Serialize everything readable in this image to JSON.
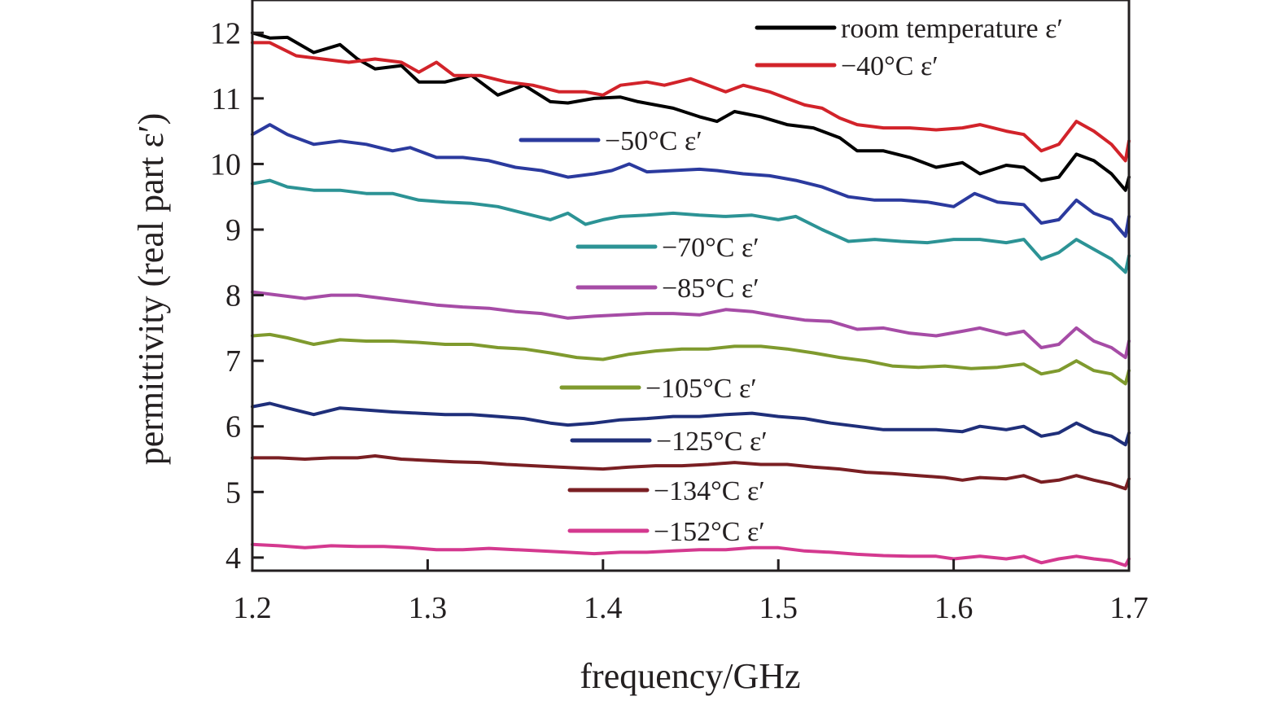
{
  "chart_data": {
    "type": "line",
    "title": "",
    "xlabel": "frequency/GHz",
    "ylabel": "permittivity (real part ε′)",
    "xlim": [
      1.2,
      1.7
    ],
    "ylim": [
      3.8,
      12.5
    ],
    "xticks": [
      "1.2",
      "1.3",
      "1.4",
      "1.5",
      "1.6",
      "1.7"
    ],
    "xtick_values": [
      1.2,
      1.3,
      1.4,
      1.5,
      1.6,
      1.7
    ],
    "yticks": [
      "4",
      "5",
      "6",
      "7",
      "8",
      "9",
      "10",
      "11",
      "12"
    ],
    "ytick_values": [
      4,
      5,
      6,
      7,
      8,
      9,
      10,
      11,
      12
    ],
    "grid": false,
    "legend_placement": "inline",
    "series": [
      {
        "name": "room temperature ε′",
        "color": "#000000",
        "x": [
          1.2,
          1.21,
          1.22,
          1.235,
          1.25,
          1.26,
          1.27,
          1.285,
          1.295,
          1.31,
          1.325,
          1.34,
          1.355,
          1.37,
          1.38,
          1.395,
          1.41,
          1.42,
          1.44,
          1.455,
          1.465,
          1.475,
          1.49,
          1.505,
          1.52,
          1.535,
          1.545,
          1.56,
          1.575,
          1.59,
          1.605,
          1.615,
          1.63,
          1.64,
          1.65,
          1.66,
          1.67,
          1.68,
          1.69,
          1.698,
          1.7
        ],
        "y": [
          12.0,
          11.92,
          11.93,
          11.7,
          11.82,
          11.6,
          11.45,
          11.5,
          11.25,
          11.25,
          11.35,
          11.05,
          11.2,
          10.95,
          10.93,
          11.0,
          11.02,
          10.95,
          10.85,
          10.72,
          10.65,
          10.8,
          10.72,
          10.6,
          10.55,
          10.4,
          10.2,
          10.2,
          10.1,
          9.95,
          10.02,
          9.85,
          9.98,
          9.95,
          9.75,
          9.8,
          10.15,
          10.05,
          9.85,
          9.6,
          9.8
        ]
      },
      {
        "name": "−40°C ε′",
        "color": "#d2232a",
        "x": [
          1.2,
          1.21,
          1.225,
          1.24,
          1.255,
          1.27,
          1.285,
          1.295,
          1.305,
          1.315,
          1.33,
          1.345,
          1.36,
          1.375,
          1.39,
          1.4,
          1.41,
          1.425,
          1.435,
          1.45,
          1.46,
          1.47,
          1.48,
          1.495,
          1.505,
          1.515,
          1.525,
          1.535,
          1.545,
          1.56,
          1.575,
          1.59,
          1.605,
          1.615,
          1.63,
          1.64,
          1.65,
          1.66,
          1.67,
          1.68,
          1.69,
          1.698,
          1.7
        ],
        "y": [
          11.85,
          11.85,
          11.65,
          11.6,
          11.55,
          11.6,
          11.55,
          11.4,
          11.55,
          11.35,
          11.35,
          11.25,
          11.2,
          11.1,
          11.1,
          11.05,
          11.2,
          11.25,
          11.2,
          11.3,
          11.2,
          11.1,
          11.2,
          11.1,
          11.0,
          10.9,
          10.85,
          10.7,
          10.6,
          10.55,
          10.55,
          10.52,
          10.55,
          10.6,
          10.5,
          10.45,
          10.2,
          10.3,
          10.65,
          10.5,
          10.3,
          10.05,
          10.35
        ]
      },
      {
        "name": "−50°C ε′",
        "color": "#2b3a9e",
        "x": [
          1.2,
          1.21,
          1.22,
          1.235,
          1.25,
          1.265,
          1.28,
          1.29,
          1.305,
          1.32,
          1.335,
          1.35,
          1.365,
          1.38,
          1.395,
          1.405,
          1.415,
          1.425,
          1.44,
          1.455,
          1.465,
          1.48,
          1.495,
          1.51,
          1.525,
          1.54,
          1.555,
          1.57,
          1.585,
          1.6,
          1.612,
          1.625,
          1.64,
          1.65,
          1.66,
          1.67,
          1.68,
          1.69,
          1.698,
          1.7
        ],
        "y": [
          10.45,
          10.6,
          10.45,
          10.3,
          10.35,
          10.3,
          10.2,
          10.25,
          10.1,
          10.1,
          10.05,
          9.95,
          9.9,
          9.8,
          9.85,
          9.9,
          10.0,
          9.88,
          9.9,
          9.92,
          9.9,
          9.85,
          9.82,
          9.75,
          9.65,
          9.5,
          9.45,
          9.45,
          9.42,
          9.35,
          9.55,
          9.42,
          9.38,
          9.1,
          9.15,
          9.45,
          9.25,
          9.15,
          8.9,
          9.2
        ]
      },
      {
        "name": "−70°C ε′",
        "color": "#2c9395",
        "x": [
          1.2,
          1.21,
          1.22,
          1.235,
          1.25,
          1.265,
          1.28,
          1.295,
          1.31,
          1.325,
          1.34,
          1.355,
          1.37,
          1.38,
          1.39,
          1.4,
          1.41,
          1.425,
          1.44,
          1.455,
          1.47,
          1.485,
          1.5,
          1.51,
          1.525,
          1.54,
          1.555,
          1.57,
          1.585,
          1.6,
          1.615,
          1.63,
          1.64,
          1.65,
          1.66,
          1.67,
          1.68,
          1.69,
          1.698,
          1.7
        ],
        "y": [
          9.7,
          9.75,
          9.65,
          9.6,
          9.6,
          9.55,
          9.55,
          9.45,
          9.42,
          9.4,
          9.35,
          9.25,
          9.15,
          9.25,
          9.08,
          9.15,
          9.2,
          9.22,
          9.25,
          9.22,
          9.2,
          9.22,
          9.15,
          9.2,
          9.0,
          8.82,
          8.85,
          8.82,
          8.8,
          8.85,
          8.85,
          8.8,
          8.85,
          8.55,
          8.65,
          8.85,
          8.7,
          8.55,
          8.35,
          8.6
        ]
      },
      {
        "name": "−85°C ε′",
        "color": "#a64ca6",
        "x": [
          1.2,
          1.215,
          1.23,
          1.245,
          1.26,
          1.275,
          1.29,
          1.305,
          1.32,
          1.335,
          1.35,
          1.365,
          1.38,
          1.395,
          1.41,
          1.425,
          1.44,
          1.455,
          1.47,
          1.485,
          1.5,
          1.515,
          1.53,
          1.545,
          1.56,
          1.575,
          1.59,
          1.605,
          1.615,
          1.63,
          1.64,
          1.65,
          1.66,
          1.67,
          1.68,
          1.69,
          1.698,
          1.7
        ],
        "y": [
          8.05,
          8.0,
          7.95,
          8.0,
          8.0,
          7.95,
          7.9,
          7.85,
          7.82,
          7.8,
          7.75,
          7.72,
          7.65,
          7.68,
          7.7,
          7.72,
          7.72,
          7.7,
          7.78,
          7.75,
          7.68,
          7.62,
          7.6,
          7.48,
          7.5,
          7.42,
          7.38,
          7.45,
          7.5,
          7.4,
          7.45,
          7.2,
          7.25,
          7.5,
          7.3,
          7.2,
          7.05,
          7.3
        ]
      },
      {
        "name": "−105°C ε′",
        "color": "#7f9a2e",
        "x": [
          1.2,
          1.21,
          1.22,
          1.235,
          1.25,
          1.265,
          1.28,
          1.295,
          1.31,
          1.325,
          1.34,
          1.355,
          1.37,
          1.385,
          1.4,
          1.415,
          1.43,
          1.445,
          1.46,
          1.475,
          1.49,
          1.505,
          1.52,
          1.535,
          1.55,
          1.565,
          1.58,
          1.595,
          1.61,
          1.625,
          1.64,
          1.65,
          1.66,
          1.67,
          1.68,
          1.69,
          1.698,
          1.7
        ],
        "y": [
          7.38,
          7.4,
          7.35,
          7.25,
          7.32,
          7.3,
          7.3,
          7.28,
          7.25,
          7.25,
          7.2,
          7.18,
          7.12,
          7.05,
          7.02,
          7.1,
          7.15,
          7.18,
          7.18,
          7.22,
          7.22,
          7.18,
          7.12,
          7.05,
          7.0,
          6.92,
          6.9,
          6.92,
          6.88,
          6.9,
          6.95,
          6.8,
          6.85,
          7.0,
          6.85,
          6.8,
          6.65,
          6.85
        ]
      },
      {
        "name": "−125°C ε′",
        "color": "#1f2f7a",
        "x": [
          1.2,
          1.21,
          1.22,
          1.235,
          1.25,
          1.265,
          1.28,
          1.295,
          1.31,
          1.325,
          1.34,
          1.355,
          1.37,
          1.38,
          1.395,
          1.41,
          1.425,
          1.44,
          1.455,
          1.47,
          1.485,
          1.5,
          1.515,
          1.53,
          1.545,
          1.56,
          1.575,
          1.59,
          1.605,
          1.615,
          1.63,
          1.64,
          1.65,
          1.66,
          1.67,
          1.68,
          1.69,
          1.698,
          1.7
        ],
        "y": [
          6.3,
          6.35,
          6.28,
          6.18,
          6.28,
          6.25,
          6.22,
          6.2,
          6.18,
          6.18,
          6.15,
          6.12,
          6.05,
          6.02,
          6.05,
          6.1,
          6.12,
          6.15,
          6.15,
          6.18,
          6.2,
          6.15,
          6.12,
          6.05,
          6.0,
          5.95,
          5.95,
          5.95,
          5.92,
          6.0,
          5.95,
          6.0,
          5.85,
          5.9,
          6.05,
          5.92,
          5.85,
          5.72,
          5.9
        ]
      },
      {
        "name": "−134°C ε′",
        "color": "#7a1f23",
        "x": [
          1.2,
          1.215,
          1.23,
          1.245,
          1.26,
          1.27,
          1.285,
          1.3,
          1.315,
          1.33,
          1.345,
          1.36,
          1.375,
          1.39,
          1.4,
          1.415,
          1.43,
          1.445,
          1.46,
          1.475,
          1.49,
          1.505,
          1.52,
          1.535,
          1.55,
          1.565,
          1.58,
          1.595,
          1.605,
          1.615,
          1.63,
          1.64,
          1.65,
          1.66,
          1.67,
          1.68,
          1.69,
          1.698,
          1.7
        ],
        "y": [
          5.52,
          5.52,
          5.5,
          5.52,
          5.52,
          5.55,
          5.5,
          5.48,
          5.46,
          5.45,
          5.42,
          5.4,
          5.38,
          5.36,
          5.35,
          5.38,
          5.4,
          5.4,
          5.42,
          5.45,
          5.42,
          5.42,
          5.38,
          5.35,
          5.3,
          5.28,
          5.25,
          5.22,
          5.18,
          5.22,
          5.2,
          5.25,
          5.15,
          5.18,
          5.25,
          5.18,
          5.12,
          5.05,
          5.2
        ]
      },
      {
        "name": "−152°C ε′",
        "color": "#d4398f",
        "x": [
          1.2,
          1.215,
          1.23,
          1.245,
          1.26,
          1.275,
          1.29,
          1.305,
          1.32,
          1.335,
          1.35,
          1.365,
          1.38,
          1.395,
          1.41,
          1.425,
          1.44,
          1.455,
          1.47,
          1.485,
          1.5,
          1.515,
          1.53,
          1.545,
          1.56,
          1.575,
          1.59,
          1.6,
          1.615,
          1.63,
          1.64,
          1.65,
          1.66,
          1.67,
          1.68,
          1.69,
          1.698,
          1.7
        ],
        "y": [
          4.2,
          4.18,
          4.15,
          4.18,
          4.17,
          4.17,
          4.15,
          4.12,
          4.12,
          4.14,
          4.12,
          4.1,
          4.08,
          4.06,
          4.08,
          4.08,
          4.1,
          4.12,
          4.12,
          4.15,
          4.15,
          4.1,
          4.08,
          4.05,
          4.03,
          4.02,
          4.02,
          3.98,
          4.02,
          3.98,
          4.02,
          3.92,
          3.98,
          4.02,
          3.98,
          3.95,
          3.88,
          3.98
        ]
      }
    ]
  }
}
